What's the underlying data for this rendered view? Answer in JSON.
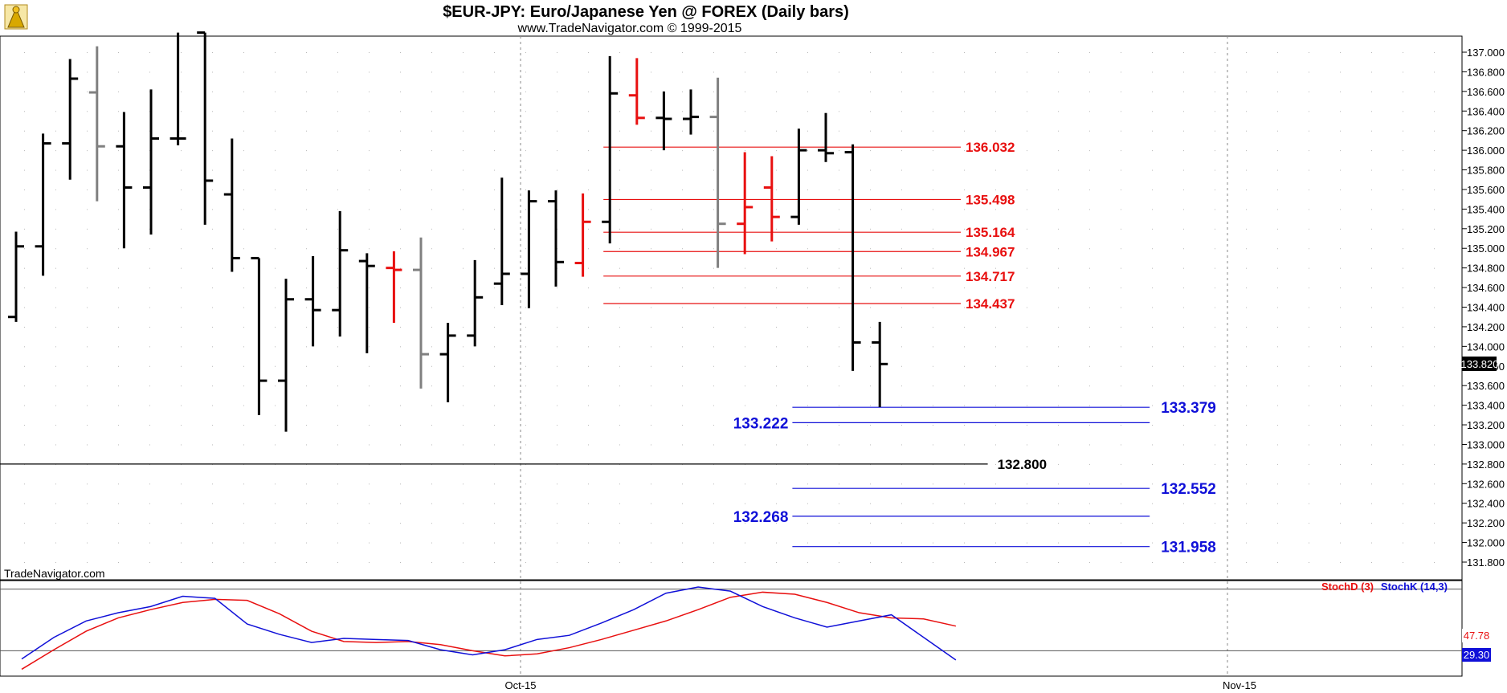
{
  "header": {
    "title": "$EUR-JPY:  Euro/Japanese Yen @ FOREX  (Daily bars)",
    "subtitle": "www.TradeNavigator.com © 1999-2015"
  },
  "watermark": "TradeNavigator.com",
  "colors": {
    "red": "#e81010",
    "blue": "#1010d8",
    "gray": "#808080",
    "black": "#000000"
  },
  "chart_data": [
    {
      "type": "ohlc",
      "ylim": [
        131.6,
        137.2
      ],
      "y_ticks": [
        "137.000",
        "136.800",
        "136.600",
        "136.400",
        "136.200",
        "136.000",
        "135.800",
        "135.600",
        "135.400",
        "135.200",
        "135.000",
        "134.800",
        "134.600",
        "134.400",
        "134.200",
        "134.000",
        "133.800",
        "133.600",
        "133.400",
        "133.200",
        "133.000",
        "132.800",
        "132.600",
        "132.400",
        "132.200",
        "132.000",
        "131.800"
      ],
      "x_labels": [
        "Oct-15",
        "Nov-15"
      ],
      "last_price": "133.820",
      "bars": [
        {
          "o": 134.3,
          "h": 135.17,
          "l": 134.25,
          "c": 135.02,
          "color": "black"
        },
        {
          "o": 135.02,
          "h": 136.17,
          "l": 134.72,
          "c": 136.07,
          "color": "black"
        },
        {
          "o": 136.07,
          "h": 136.93,
          "l": 135.7,
          "c": 136.73,
          "color": "black"
        },
        {
          "o": 136.59,
          "h": 137.06,
          "l": 135.48,
          "c": 136.04,
          "color": "gray"
        },
        {
          "o": 136.04,
          "h": 136.39,
          "l": 135.0,
          "c": 135.62,
          "color": "black"
        },
        {
          "o": 135.62,
          "h": 136.62,
          "l": 135.14,
          "c": 136.12,
          "color": "black"
        },
        {
          "o": 136.12,
          "h": 137.2,
          "l": 136.05,
          "c": 136.12,
          "color": "black"
        },
        {
          "o": 137.2,
          "h": 137.2,
          "l": 135.24,
          "c": 135.69,
          "color": "black"
        },
        {
          "o": 135.55,
          "h": 136.12,
          "l": 134.76,
          "c": 134.9,
          "color": "black"
        },
        {
          "o": 134.9,
          "h": 134.9,
          "l": 133.3,
          "c": 133.65,
          "color": "black"
        },
        {
          "o": 133.65,
          "h": 134.69,
          "l": 133.13,
          "c": 134.48,
          "color": "black"
        },
        {
          "o": 134.48,
          "h": 134.92,
          "l": 134.0,
          "c": 134.37,
          "color": "black"
        },
        {
          "o": 134.37,
          "h": 135.38,
          "l": 134.1,
          "c": 134.98,
          "color": "black"
        },
        {
          "o": 134.87,
          "h": 134.95,
          "l": 133.93,
          "c": 134.82,
          "color": "black"
        },
        {
          "o": 134.8,
          "h": 134.97,
          "l": 134.24,
          "c": 134.78,
          "color": "red"
        },
        {
          "o": 134.78,
          "h": 135.11,
          "l": 133.57,
          "c": 133.92,
          "color": "gray"
        },
        {
          "o": 133.92,
          "h": 134.24,
          "l": 133.43,
          "c": 134.11,
          "color": "black"
        },
        {
          "o": 134.11,
          "h": 134.88,
          "l": 134.0,
          "c": 134.5,
          "color": "black"
        },
        {
          "o": 134.64,
          "h": 135.72,
          "l": 134.42,
          "c": 134.74,
          "color": "black"
        },
        {
          "o": 134.74,
          "h": 135.59,
          "l": 134.39,
          "c": 135.48,
          "color": "black"
        },
        {
          "o": 135.48,
          "h": 135.59,
          "l": 134.61,
          "c": 134.86,
          "color": "black"
        },
        {
          "o": 134.85,
          "h": 135.56,
          "l": 134.71,
          "c": 135.27,
          "color": "red"
        },
        {
          "o": 135.27,
          "h": 136.96,
          "l": 135.05,
          "c": 136.58,
          "color": "black"
        },
        {
          "o": 136.56,
          "h": 136.94,
          "l": 136.26,
          "c": 136.33,
          "color": "red"
        },
        {
          "o": 136.33,
          "h": 136.6,
          "l": 136.0,
          "c": 136.32,
          "color": "black"
        },
        {
          "o": 136.32,
          "h": 136.62,
          "l": 136.16,
          "c": 136.34,
          "color": "black"
        },
        {
          "o": 136.34,
          "h": 136.74,
          "l": 134.8,
          "c": 135.25,
          "color": "gray"
        },
        {
          "o": 135.25,
          "h": 135.98,
          "l": 134.94,
          "c": 135.42,
          "color": "red"
        },
        {
          "o": 135.62,
          "h": 135.94,
          "l": 135.07,
          "c": 135.32,
          "color": "red"
        },
        {
          "o": 135.32,
          "h": 136.22,
          "l": 135.24,
          "c": 136.0,
          "color": "black"
        },
        {
          "o": 136.0,
          "h": 136.38,
          "l": 135.88,
          "c": 135.97,
          "color": "black"
        },
        {
          "o": 135.98,
          "h": 136.06,
          "l": 133.75,
          "c": 134.04,
          "color": "black"
        },
        {
          "o": 134.04,
          "h": 134.25,
          "l": 133.38,
          "c": 133.82,
          "color": "black"
        }
      ],
      "levels": [
        {
          "value": 136.032,
          "label": "136.032",
          "color": "red",
          "x0": 22,
          "x1": 35
        },
        {
          "value": 135.498,
          "label": "135.498",
          "color": "red",
          "x0": 22,
          "x1": 35
        },
        {
          "value": 135.164,
          "label": "135.164",
          "color": "red",
          "x0": 22,
          "x1": 35
        },
        {
          "value": 134.967,
          "label": "134.967",
          "color": "red",
          "x0": 22,
          "x1": 35
        },
        {
          "value": 134.717,
          "label": "134.717",
          "color": "red",
          "x0": 22,
          "x1": 35
        },
        {
          "value": 134.437,
          "label": "134.437",
          "color": "red",
          "x0": 22,
          "x1": 35
        },
        {
          "value": 133.379,
          "label": "133.379",
          "color": "blue",
          "x0": 29,
          "x1": 42
        },
        {
          "value": 133.222,
          "label": "133.222",
          "color": "blue",
          "x0": 29,
          "x1": 42
        },
        {
          "value": 132.8,
          "label": "132.800",
          "color": "black",
          "x0": -1,
          "x1": 36
        },
        {
          "value": 132.552,
          "label": "132.552",
          "color": "blue",
          "x0": 29,
          "x1": 42
        },
        {
          "value": 132.268,
          "label": "132.268",
          "color": "blue",
          "x0": 29,
          "x1": 42
        },
        {
          "value": 131.958,
          "label": "131.958",
          "color": "blue",
          "x0": 29,
          "x1": 42
        }
      ]
    },
    {
      "type": "line",
      "ylim": [
        0,
        100
      ],
      "series": [
        {
          "name": "StochD (3)",
          "color": "red",
          "values": [
            2,
            21,
            39,
            52,
            60,
            67,
            70,
            69,
            56,
            39,
            29,
            28,
            29,
            26,
            20,
            15,
            17,
            23,
            31,
            40,
            49,
            60,
            72,
            77,
            75,
            67,
            57,
            52,
            51,
            44
          ]
        },
        {
          "name": "StochK (14,3)",
          "color": "blue",
          "values": [
            12,
            33,
            49,
            57,
            63,
            73,
            71,
            46,
            36,
            28,
            32,
            31,
            30,
            21,
            16,
            21,
            31,
            35,
            47,
            60,
            76,
            82,
            78,
            63,
            52,
            43,
            49,
            55,
            33,
            11
          ]
        }
      ],
      "readouts": [
        "47.78",
        "29.30"
      ]
    }
  ]
}
